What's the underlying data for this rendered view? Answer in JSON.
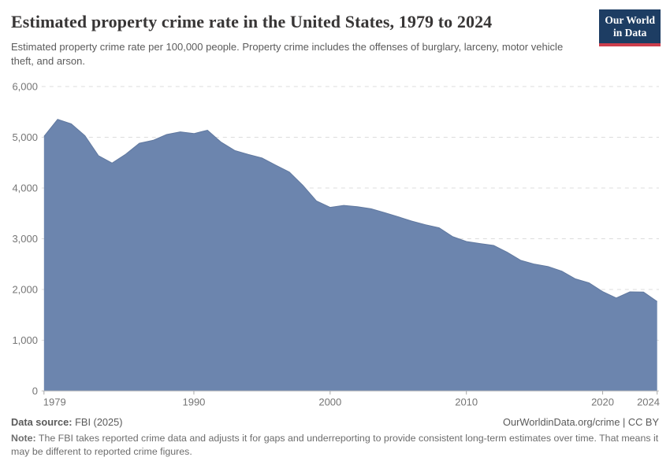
{
  "header": {
    "title": "Estimated property crime rate in the United States, 1979 to 2024",
    "subtitle": "Estimated property crime rate per 100,000 people. Property crime includes the offenses of burglary, larceny, motor vehicle theft, and arson.",
    "logo": {
      "line1": "Our World",
      "line2": "in Data",
      "bg_color": "#1d3d63",
      "accent_color": "#cd3e4c"
    }
  },
  "chart_data": {
    "type": "area",
    "title": "Estimated property crime rate in the United States, 1979 to 2024",
    "series_name": "Estimated property crime rate per 100,000 people",
    "x": [
      1979,
      1980,
      1981,
      1982,
      1983,
      1984,
      1985,
      1986,
      1987,
      1988,
      1989,
      1990,
      1991,
      1992,
      1993,
      1994,
      1995,
      1996,
      1997,
      1998,
      1999,
      2000,
      2001,
      2002,
      2003,
      2004,
      2005,
      2006,
      2007,
      2008,
      2009,
      2010,
      2011,
      2012,
      2013,
      2014,
      2015,
      2016,
      2017,
      2018,
      2019,
      2020,
      2021,
      2022,
      2023,
      2024
    ],
    "values": [
      5017,
      5353,
      5264,
      5033,
      4637,
      4492,
      4666,
      4882,
      4940,
      5054,
      5107,
      5073,
      5140,
      4904,
      4740,
      4660,
      4591,
      4451,
      4316,
      4053,
      3744,
      3618,
      3658,
      3631,
      3591,
      3514,
      3432,
      3347,
      3276,
      3215,
      3041,
      2946,
      2905,
      2868,
      2734,
      2574,
      2500,
      2452,
      2362,
      2210,
      2131,
      1958,
      1832,
      1954,
      1949,
      1763
    ],
    "xlabel": "",
    "ylabel": "",
    "xlim": [
      1979,
      2024
    ],
    "ylim": [
      0,
      6000
    ],
    "xticks": [
      1979,
      1990,
      2000,
      2010,
      2020,
      2024
    ],
    "xtick_labels": [
      "1979",
      "1990",
      "2000",
      "2010",
      "2020",
      "2024"
    ],
    "yticks": [
      0,
      1000,
      2000,
      3000,
      4000,
      5000,
      6000
    ],
    "ytick_labels": [
      "0",
      "1,000",
      "2,000",
      "3,000",
      "4,000",
      "5,000",
      "6,000"
    ],
    "grid": "horizontal-dashed",
    "legend_position": "none",
    "colors": {
      "fill": "#6c85ae",
      "line": "#60789f",
      "gridline": "#dcdcdc",
      "baseline": "#bdbdbd",
      "tick": "#a8a8a8",
      "tick_label": "#757575"
    }
  },
  "footer": {
    "datasource_label": "Data source:",
    "datasource_value": "FBI (2025)",
    "link": "OurWorldinData.org/crime | CC BY",
    "note_label": "Note:",
    "note_value": "The FBI takes reported crime data and adjusts it for gaps and underreporting to provide consistent long-term estimates over time. That means it may be different to reported crime figures."
  }
}
